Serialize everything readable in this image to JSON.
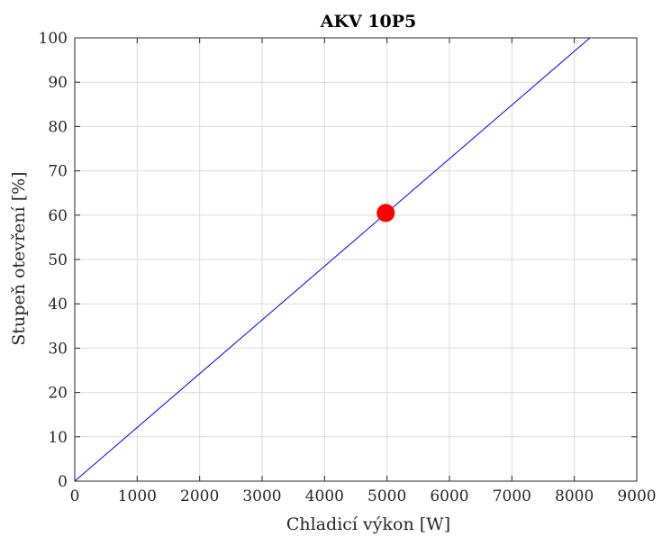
{
  "chart_data": {
    "type": "line",
    "title": "AKV 10P5",
    "xlabel": "Chladicí výkon [W]",
    "ylabel": "Stupeň otevření [%]",
    "xlim": [
      0,
      9000
    ],
    "ylim": [
      0,
      100
    ],
    "xticks": [
      0,
      1000,
      2000,
      3000,
      4000,
      5000,
      6000,
      7000,
      8000,
      9000
    ],
    "yticks": [
      0,
      10,
      20,
      30,
      40,
      50,
      60,
      70,
      80,
      90,
      100
    ],
    "grid": true,
    "series": [
      {
        "type": "line",
        "color": "#0000ff",
        "x": [
          0,
          8250
        ],
        "y": [
          0,
          100
        ]
      },
      {
        "type": "scatter",
        "color": "#ff0000",
        "marker": "circle",
        "x": [
          4980
        ],
        "y": [
          60.5
        ]
      }
    ]
  }
}
